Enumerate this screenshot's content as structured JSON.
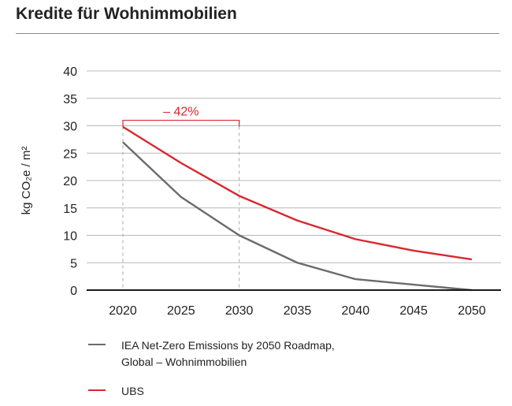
{
  "title": "Kredite für Wohnimmobilien",
  "colors": {
    "iea": "#6b6b6b",
    "ubs": "#d9272e",
    "grid": "#b9b9b9",
    "axis": "#1a1a1a",
    "guide": "#a9a9a9"
  },
  "annotation": {
    "text": "– 42%",
    "from": 2020,
    "to": 2030,
    "level": 31
  },
  "legend": [
    {
      "key": "iea",
      "lines": [
        "IEA Net-Zero Emissions by 2050 Roadmap,",
        "Global – Wohnimmobilien"
      ]
    },
    {
      "key": "ubs",
      "lines": [
        "UBS"
      ]
    }
  ],
  "chart_data": {
    "type": "line",
    "title": "",
    "xlabel": "",
    "ylabel": "kg CO₂e / m²",
    "x": [
      2020,
      2025,
      2030,
      2035,
      2040,
      2045,
      2050
    ],
    "ylim": [
      0,
      40
    ],
    "yticks": [
      0,
      5,
      10,
      15,
      20,
      25,
      30,
      35,
      40
    ],
    "grid": true,
    "legend_position": "bottom",
    "series": [
      {
        "name": "IEA Net-Zero Emissions by 2050 Roadmap, Global – Wohnimmobilien",
        "color": "#6b6b6b",
        "values": [
          27,
          17,
          10,
          5,
          2,
          1,
          0
        ]
      },
      {
        "name": "UBS",
        "color": "#d9272e",
        "values": [
          29.8,
          23.2,
          17.2,
          12.7,
          9.3,
          7.2,
          5.6
        ]
      }
    ]
  }
}
